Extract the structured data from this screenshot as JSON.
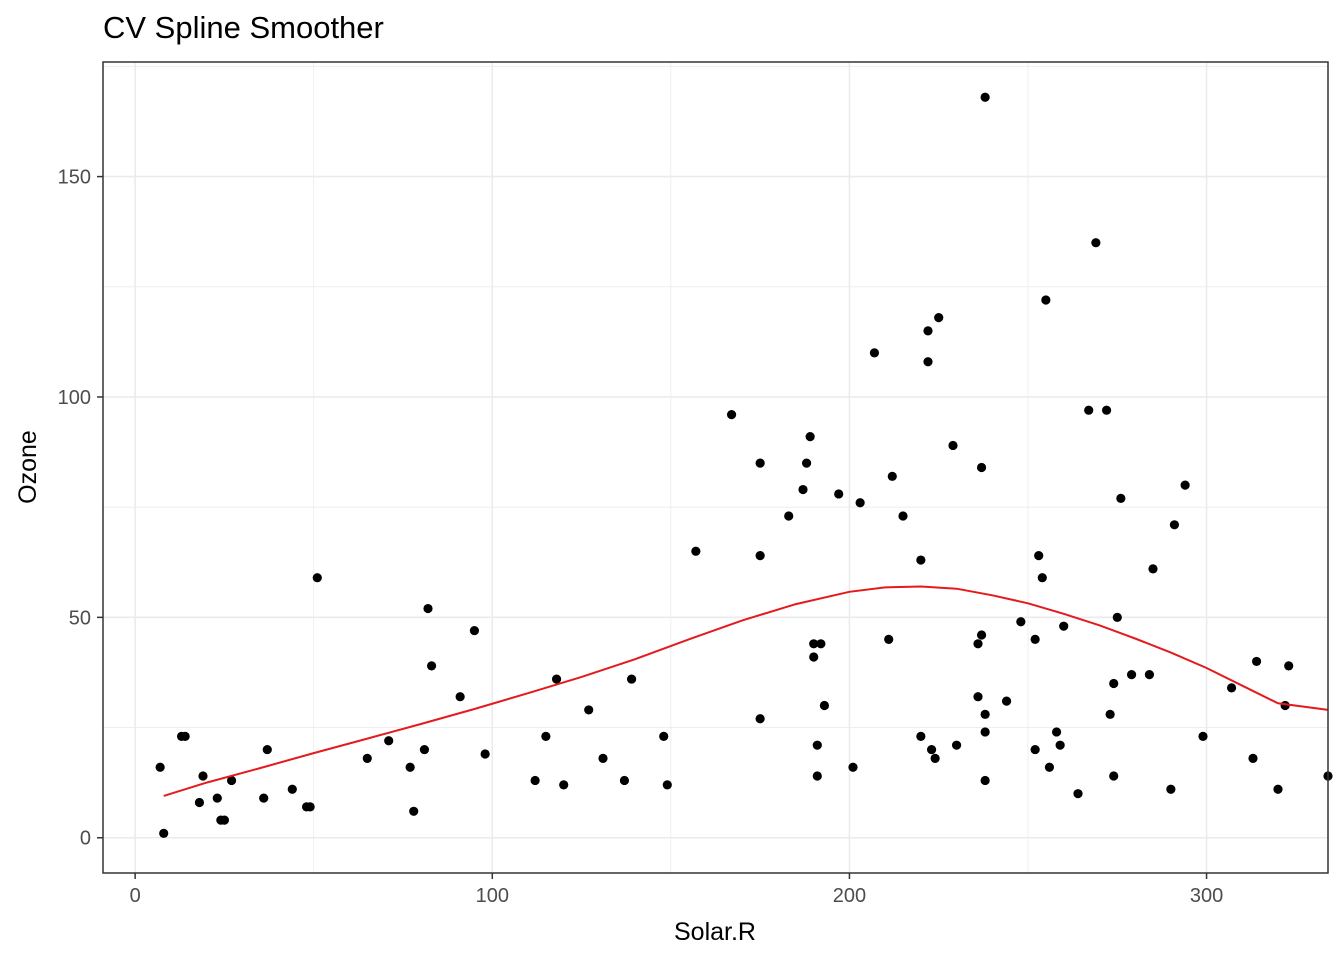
{
  "chart_data": {
    "type": "scatter",
    "title": "CV Spline Smoother",
    "xlabel": "Solar.R",
    "ylabel": "Ozone",
    "xlim": [
      -9,
      334
    ],
    "ylim": [
      -8,
      176
    ],
    "x_ticks": [
      0,
      100,
      200,
      300
    ],
    "y_ticks": [
      0,
      50,
      100,
      150
    ],
    "grid": true,
    "colors": {
      "points": "#000000",
      "smoother": "#e41a1c",
      "grid": "#ebebeb",
      "panel_border": "#333333"
    },
    "points": [
      [
        7,
        16
      ],
      [
        8,
        1
      ],
      [
        13,
        23
      ],
      [
        14,
        23
      ],
      [
        18,
        8
      ],
      [
        19,
        14
      ],
      [
        23,
        9
      ],
      [
        24,
        4
      ],
      [
        25,
        4
      ],
      [
        27,
        13
      ],
      [
        36,
        9
      ],
      [
        37,
        20
      ],
      [
        44,
        11
      ],
      [
        48,
        7
      ],
      [
        49,
        7
      ],
      [
        51,
        59
      ],
      [
        65,
        18
      ],
      [
        71,
        22
      ],
      [
        77,
        16
      ],
      [
        78,
        6
      ],
      [
        81,
        20
      ],
      [
        82,
        52
      ],
      [
        83,
        39
      ],
      [
        91,
        32
      ],
      [
        95,
        47
      ],
      [
        98,
        19
      ],
      [
        112,
        13
      ],
      [
        115,
        23
      ],
      [
        118,
        36
      ],
      [
        120,
        12
      ],
      [
        127,
        29
      ],
      [
        131,
        18
      ],
      [
        137,
        13
      ],
      [
        139,
        36
      ],
      [
        148,
        23
      ],
      [
        149,
        12
      ],
      [
        157,
        65
      ],
      [
        167,
        96
      ],
      [
        175,
        85
      ],
      [
        175,
        64
      ],
      [
        175,
        27
      ],
      [
        183,
        73
      ],
      [
        187,
        79
      ],
      [
        188,
        85
      ],
      [
        189,
        91
      ],
      [
        190,
        41
      ],
      [
        190,
        44
      ],
      [
        191,
        21
      ],
      [
        191,
        14
      ],
      [
        192,
        44
      ],
      [
        193,
        30
      ],
      [
        197,
        78
      ],
      [
        201,
        16
      ],
      [
        203,
        76
      ],
      [
        207,
        110
      ],
      [
        211,
        45
      ],
      [
        212,
        82
      ],
      [
        215,
        73
      ],
      [
        220,
        63
      ],
      [
        220,
        23
      ],
      [
        222,
        115
      ],
      [
        222,
        108
      ],
      [
        223,
        20
      ],
      [
        224,
        18
      ],
      [
        225,
        118
      ],
      [
        229,
        89
      ],
      [
        230,
        21
      ],
      [
        236,
        44
      ],
      [
        236,
        32
      ],
      [
        237,
        84
      ],
      [
        237,
        46
      ],
      [
        238,
        168
      ],
      [
        238,
        28
      ],
      [
        238,
        24
      ],
      [
        238,
        13
      ],
      [
        244,
        31
      ],
      [
        248,
        49
      ],
      [
        252,
        45
      ],
      [
        252,
        20
      ],
      [
        253,
        64
      ],
      [
        254,
        59
      ],
      [
        255,
        122
      ],
      [
        256,
        16
      ],
      [
        258,
        24
      ],
      [
        259,
        21
      ],
      [
        260,
        48
      ],
      [
        264,
        10
      ],
      [
        267,
        97
      ],
      [
        269,
        135
      ],
      [
        272,
        97
      ],
      [
        273,
        28
      ],
      [
        274,
        35
      ],
      [
        274,
        14
      ],
      [
        275,
        50
      ],
      [
        276,
        77
      ],
      [
        279,
        37
      ],
      [
        284,
        37
      ],
      [
        285,
        61
      ],
      [
        290,
        11
      ],
      [
        291,
        71
      ],
      [
        294,
        80
      ],
      [
        299,
        23
      ],
      [
        307,
        34
      ],
      [
        313,
        18
      ],
      [
        314,
        40
      ],
      [
        320,
        11
      ],
      [
        322,
        30
      ],
      [
        323,
        39
      ],
      [
        334,
        14
      ]
    ],
    "smoother": {
      "x": [
        8,
        20,
        35,
        50,
        65,
        80,
        95,
        110,
        125,
        140,
        155,
        170,
        185,
        200,
        210,
        220,
        230,
        240,
        250,
        260,
        270,
        280,
        290,
        300,
        310,
        320,
        334
      ],
      "y": [
        9.5,
        12.5,
        15.8,
        19.2,
        22.5,
        25.8,
        29.2,
        32.8,
        36.5,
        40.5,
        45.0,
        49.3,
        53.0,
        55.8,
        56.8,
        57.0,
        56.5,
        55.0,
        53.2,
        50.8,
        48.2,
        45.2,
        42.0,
        38.5,
        34.5,
        30.5,
        29.0
      ]
    }
  }
}
